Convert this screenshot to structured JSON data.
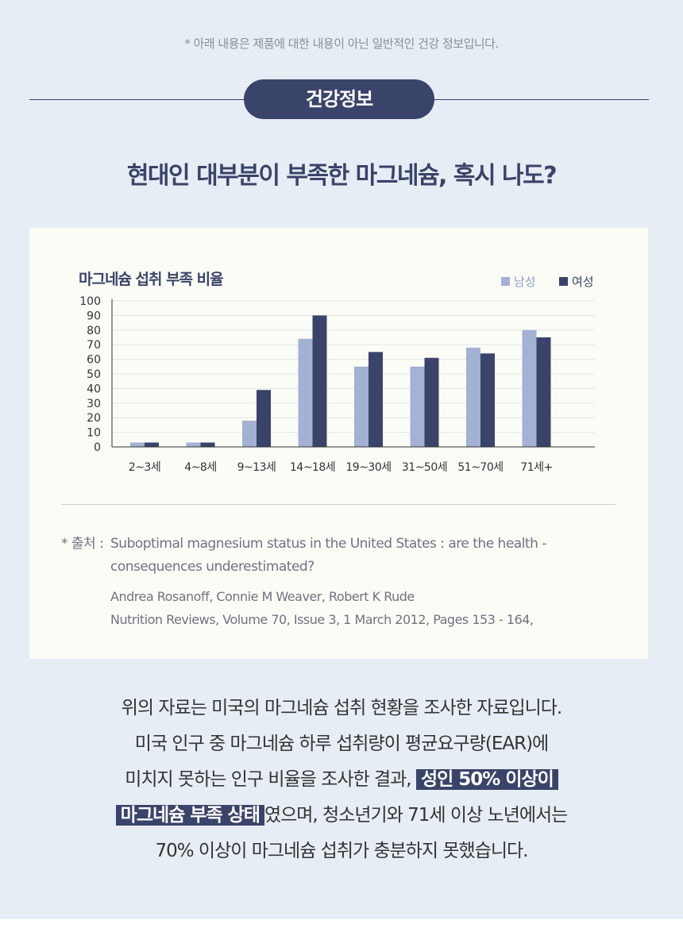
{
  "disclaimer": "* 아래 내용은 제품에 대한 내용이 아닌 일반적인 건강 정보입니다.",
  "badge": "건강정보",
  "headline": "현대인 대부분이 부족한 마그네슘, 혹시 나도?",
  "chart_data": {
    "type": "bar",
    "title": "마그네슘 섭취 부족 비율",
    "categories": [
      "2~3세",
      "4~8세",
      "9~13세",
      "14~18세",
      "19~30세",
      "31~50세",
      "51~70세",
      "71세+"
    ],
    "series": [
      {
        "name": "남성",
        "color": "#a3b1d2",
        "values": [
          3,
          3,
          18,
          74,
          55,
          55,
          68,
          80
        ]
      },
      {
        "name": "여성",
        "color": "#3a4369",
        "values": [
          3,
          3,
          39,
          90,
          65,
          61,
          64,
          75
        ]
      }
    ],
    "yticks": [
      0,
      10,
      20,
      30,
      40,
      50,
      60,
      70,
      80,
      90,
      100
    ],
    "ylim": [
      0,
      100
    ],
    "grid": true,
    "legend": "top-right"
  },
  "source": {
    "prefix": "* 출처 :",
    "title": "Suboptimal magnesium status in the United States : are the health - consequences underestimated?",
    "authors": "Andrea Rosanoff, Connie M Weaver, Robert K Rude",
    "journal": "Nutrition Reviews, Volume 70, Issue 3, 1 March 2012, Pages 153 - 164,"
  },
  "description": {
    "line1": "위의 자료는 미국의 마그네슘 섭취 현황을 조사한 자료입니다.",
    "line2": "미국 인구 중 마그네슘 하루 섭취량이 평균요구량(EAR)에",
    "line3_pre": "미치지 못하는 인구 비율을 조사한 결과,",
    "line3_hl": "성인 50% 이상이",
    "line4_hl": "마그네슘 부족 상태",
    "line4_post": "였으며, 청소년기와 71세 이상 노년에서는",
    "line5": "70% 이상이 마그네슘 섭취가 충분하지 못했습니다."
  }
}
